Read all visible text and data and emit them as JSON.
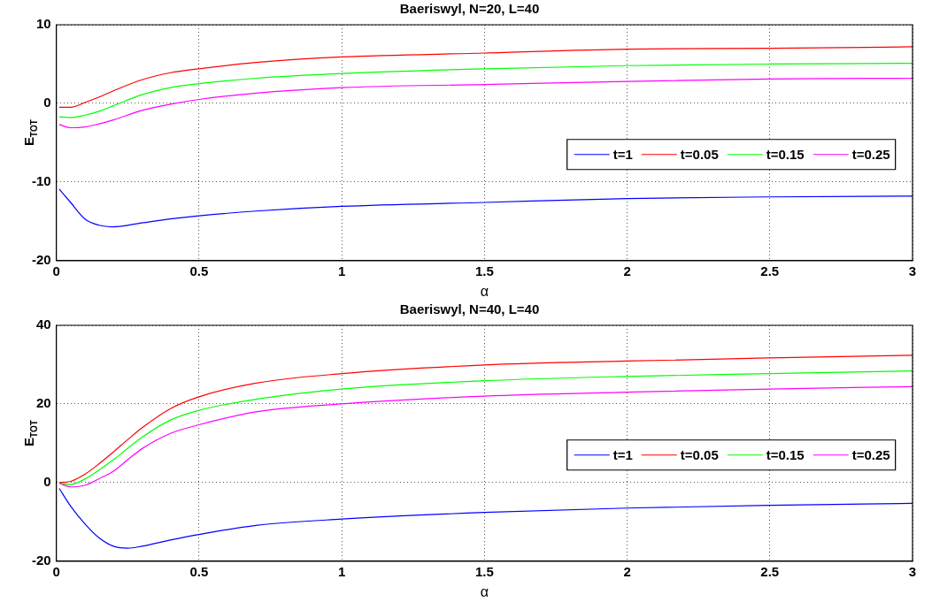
{
  "chart_data": [
    {
      "type": "line",
      "title": "Baeriswyl, N=20, L=40",
      "xlabel": "α",
      "ylabel": "E$_{TOT}$",
      "xlim": [
        0,
        3
      ],
      "xticks": [
        0,
        0.5,
        1,
        1.5,
        2,
        2.5,
        3
      ],
      "ylim": [
        -20,
        10
      ],
      "yticks": [
        -20,
        -10,
        0,
        10
      ],
      "grid": true,
      "legend": "right",
      "marker": "none",
      "line_style": "solid",
      "x": [
        0.01,
        0.05,
        0.1,
        0.15,
        0.2,
        0.3,
        0.4,
        0.5,
        0.7,
        1.0,
        1.5,
        2,
        2.5,
        3
      ],
      "series": [
        {
          "name": "t=1",
          "color": "#0000ff",
          "values": [
            -10.9,
            -12.6,
            -14.7,
            -15.5,
            -15.7,
            -15.2,
            -14.7,
            -14.3,
            -13.7,
            -13.1,
            -12.6,
            -12.1,
            -11.9,
            -11.8
          ]
        },
        {
          "name": "t=0.05",
          "color": "#ff0000",
          "values": [
            -0.5,
            -0.5,
            0.1,
            0.8,
            1.6,
            3.0,
            3.9,
            4.4,
            5.2,
            5.9,
            6.4,
            6.9,
            7.0,
            7.2
          ]
        },
        {
          "name": "t=0.15",
          "color": "#00ff00",
          "values": [
            -1.7,
            -1.8,
            -1.5,
            -1.0,
            -0.3,
            1.1,
            2.0,
            2.5,
            3.2,
            3.8,
            4.4,
            4.8,
            5.0,
            5.1
          ]
        },
        {
          "name": "t=0.25",
          "color": "#ff00ff",
          "values": [
            -2.7,
            -3.1,
            -3.0,
            -2.6,
            -2.1,
            -0.9,
            -0.1,
            0.5,
            1.3,
            2.0,
            2.4,
            2.8,
            3.1,
            3.2
          ]
        }
      ]
    },
    {
      "type": "line",
      "title": "Baeriswyl, N=40, L=40",
      "xlabel": "α",
      "ylabel": "E$_{TOT}$",
      "xlim": [
        0,
        3
      ],
      "xticks": [
        0,
        0.5,
        1,
        1.5,
        2,
        2.5,
        3
      ],
      "ylim": [
        -20,
        40
      ],
      "yticks": [
        -20,
        0,
        20,
        40
      ],
      "grid": true,
      "legend": "right",
      "marker": "none",
      "line_style": "solid",
      "x": [
        0.01,
        0.05,
        0.1,
        0.15,
        0.2,
        0.25,
        0.3,
        0.4,
        0.5,
        0.7,
        1.0,
        1.5,
        2,
        2.5,
        3
      ],
      "series": [
        {
          "name": "t=1",
          "color": "#0000ff",
          "values": [
            -1.5,
            -6.0,
            -10.5,
            -14.1,
            -16.2,
            -16.7,
            -16.2,
            -14.6,
            -13.2,
            -10.9,
            -9.3,
            -7.6,
            -6.5,
            -5.8,
            -5.3
          ]
        },
        {
          "name": "t=0.05",
          "color": "#ff0000",
          "values": [
            0,
            0.3,
            2.1,
            4.8,
            7.8,
            10.9,
            13.9,
            18.8,
            21.8,
            25.3,
            27.7,
            29.9,
            30.9,
            31.7,
            32.4
          ]
        },
        {
          "name": "t=0.15",
          "color": "#00ff00",
          "values": [
            -0.1,
            -0.5,
            0.9,
            3.2,
            5.8,
            8.7,
            11.5,
            15.9,
            18.4,
            21.2,
            23.8,
            25.9,
            27.0,
            27.7,
            28.4
          ]
        },
        {
          "name": "t=0.25",
          "color": "#ff00ff",
          "values": [
            -0.2,
            -1.1,
            -0.7,
            1.0,
            2.9,
            5.8,
            8.6,
            12.5,
            14.7,
            18.0,
            20.0,
            22.0,
            23.0,
            23.8,
            24.4
          ]
        }
      ]
    }
  ]
}
